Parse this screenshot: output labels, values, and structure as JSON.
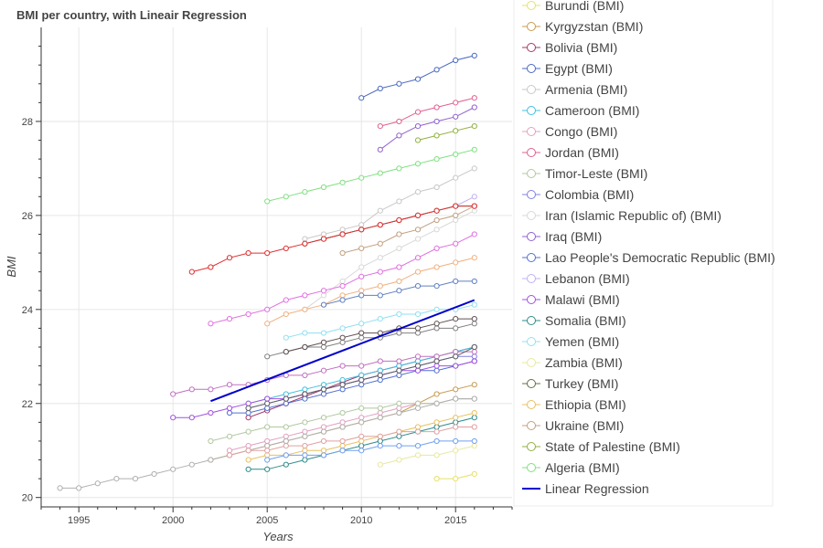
{
  "chart_data": {
    "type": "line",
    "title": "BMI per country, with Lineair Regression",
    "xlabel": "Years",
    "ylabel": "BMI",
    "xlim": [
      1993,
      2018
    ],
    "ylim": [
      19.8,
      30.0
    ],
    "xticks": [
      1995,
      2000,
      2005,
      2010,
      2015
    ],
    "yticks": [
      20,
      22,
      24,
      26,
      28
    ],
    "grid": true,
    "legend_position": "right",
    "series": [
      {
        "name": "Burundi (BMI)",
        "color": "#e8e066",
        "x": [
          2014,
          2015,
          2016
        ],
        "y": [
          20.4,
          20.4,
          20.5
        ]
      },
      {
        "name": "Kyrgyzstan (BMI)",
        "color": "#c89a50",
        "x": [
          2002,
          2003,
          2004,
          2005,
          2006,
          2007,
          2008,
          2009,
          2010,
          2011,
          2012,
          2013,
          2014,
          2015,
          2016
        ],
        "y": [
          20.8,
          20.9,
          21.0,
          21.1,
          21.2,
          21.3,
          21.4,
          21.5,
          21.6,
          21.7,
          21.8,
          22.0,
          22.2,
          22.3,
          22.4
        ]
      },
      {
        "name": "Bolivia (BMI)",
        "color": "#a03868",
        "x": [
          2004,
          2005,
          2006,
          2007,
          2008,
          2009,
          2010,
          2011,
          2012,
          2013,
          2014,
          2015,
          2016
        ],
        "y": [
          21.7,
          21.85,
          22.0,
          22.15,
          22.3,
          22.45,
          22.6,
          22.7,
          22.8,
          22.9,
          23.0,
          23.1,
          23.2
        ]
      },
      {
        "name": "Egypt (BMI)",
        "color": "#4a68c0",
        "x": [
          2010,
          2011,
          2012,
          2013,
          2014,
          2015,
          2016
        ],
        "y": [
          28.5,
          28.7,
          28.8,
          28.9,
          29.1,
          29.3,
          29.4
        ]
      },
      {
        "name": "Armenia (BMI)",
        "color": "#c8c8c8",
        "x": [
          2007,
          2008,
          2009,
          2010,
          2011,
          2012,
          2013,
          2014,
          2015,
          2016
        ],
        "y": [
          25.5,
          25.6,
          25.7,
          25.8,
          26.1,
          26.3,
          26.5,
          26.6,
          26.8,
          27.0
        ]
      },
      {
        "name": "Cameroon (BMI)",
        "color": "#40c0e0",
        "x": [
          2004,
          2005,
          2006,
          2007,
          2008,
          2009,
          2010,
          2011,
          2012,
          2013,
          2014,
          2015,
          2016
        ],
        "y": [
          22.0,
          22.1,
          22.2,
          22.3,
          22.4,
          22.5,
          22.6,
          22.7,
          22.8,
          22.9,
          23.0,
          23.1,
          23.2
        ]
      },
      {
        "name": "Congo (BMI)",
        "color": "#e0a0c0",
        "x": [
          2003,
          2004,
          2005,
          2006,
          2007,
          2008,
          2009,
          2010,
          2011,
          2012,
          2013,
          2014,
          2015,
          2016
        ],
        "y": [
          21.0,
          21.1,
          21.2,
          21.3,
          21.4,
          21.5,
          21.6,
          21.7,
          21.8,
          21.9,
          22.0,
          22.0,
          22.1,
          22.1
        ]
      },
      {
        "name": "Jordan (BMI)",
        "color": "#e06090",
        "x": [
          2011,
          2012,
          2013,
          2014,
          2015,
          2016
        ],
        "y": [
          27.9,
          28.0,
          28.2,
          28.3,
          28.4,
          28.5
        ]
      },
      {
        "name": "Timor-Leste (BMI)",
        "color": "#b0c8a0",
        "x": [
          2002,
          2003,
          2004,
          2005,
          2006,
          2007,
          2008,
          2009,
          2010,
          2011,
          2012,
          2013,
          2014,
          2015,
          2016
        ],
        "y": [
          21.2,
          21.3,
          21.4,
          21.5,
          21.5,
          21.6,
          21.7,
          21.8,
          21.9,
          21.9,
          22.0,
          22.0,
          22.0,
          22.1,
          22.1
        ]
      },
      {
        "name": "Colombia (BMI)",
        "color": "#8080e0",
        "x": [
          2004,
          2005,
          2006,
          2007,
          2008,
          2009,
          2010,
          2011,
          2012,
          2013,
          2014,
          2015,
          2016
        ],
        "y": [
          21.9,
          22.0,
          22.1,
          22.2,
          22.3,
          22.4,
          22.5,
          22.6,
          22.7,
          22.8,
          22.9,
          23.0,
          23.0
        ]
      },
      {
        "name": "Iran  (Islamic Republic of) (BMI)",
        "color": "#d8d8d8",
        "x": [
          2007,
          2008,
          2009,
          2010,
          2011,
          2012,
          2013,
          2014,
          2015,
          2016
        ],
        "y": [
          24.0,
          24.3,
          24.6,
          24.9,
          25.1,
          25.3,
          25.5,
          25.7,
          25.9,
          26.1
        ]
      },
      {
        "name": "Iraq (BMI)",
        "color": "#9060d0",
        "x": [
          2011,
          2012,
          2013,
          2014,
          2015,
          2016
        ],
        "y": [
          27.4,
          27.7,
          27.9,
          28.0,
          28.1,
          28.3
        ]
      },
      {
        "name": "Lao People's Democratic Republic (BMI)",
        "color": "#5070d0",
        "x": [
          2003,
          2004,
          2005,
          2006,
          2007,
          2008,
          2009,
          2010,
          2011,
          2012,
          2013,
          2014,
          2015,
          2016
        ],
        "y": [
          21.8,
          21.8,
          21.9,
          22.0,
          22.1,
          22.2,
          22.3,
          22.4,
          22.5,
          22.6,
          22.7,
          22.7,
          22.8,
          22.9
        ]
      },
      {
        "name": "Lebanon (BMI)",
        "color": "#c0b0f0",
        "x": [
          2007,
          2008,
          2009,
          2010,
          2011,
          2012,
          2013,
          2014,
          2015,
          2016
        ],
        "y": [
          25.4,
          25.5,
          25.6,
          25.7,
          25.8,
          25.9,
          26.0,
          26.1,
          26.2,
          26.4
        ]
      },
      {
        "name": "Malawi (BMI)",
        "color": "#a050e0",
        "x": [
          2000,
          2001,
          2002,
          2003,
          2004,
          2005,
          2006,
          2007,
          2008,
          2009,
          2010,
          2011,
          2012,
          2013,
          2014,
          2015,
          2016
        ],
        "y": [
          21.7,
          21.7,
          21.8,
          21.9,
          22.0,
          22.1,
          22.1,
          22.2,
          22.3,
          22.4,
          22.5,
          22.6,
          22.7,
          22.7,
          22.8,
          22.8,
          22.9
        ]
      },
      {
        "name": "Somalia (BMI)",
        "color": "#2e8b8b",
        "x": [
          2004,
          2005,
          2006,
          2007,
          2008,
          2009,
          2010,
          2011,
          2012,
          2013,
          2014,
          2015,
          2016
        ],
        "y": [
          20.6,
          20.6,
          20.7,
          20.8,
          20.9,
          21.0,
          21.1,
          21.2,
          21.3,
          21.4,
          21.5,
          21.6,
          21.7
        ]
      },
      {
        "name": "Yemen (BMI)",
        "color": "#90e0f0",
        "x": [
          2006,
          2007,
          2008,
          2009,
          2010,
          2011,
          2012,
          2013,
          2014,
          2015,
          2016
        ],
        "y": [
          23.4,
          23.5,
          23.5,
          23.6,
          23.7,
          23.8,
          23.9,
          23.9,
          24.0,
          24.0,
          24.1
        ]
      },
      {
        "name": "Zambia (BMI)",
        "color": "#e8e8a0",
        "x": [
          2011,
          2012,
          2013,
          2014,
          2015,
          2016
        ],
        "y": [
          20.7,
          20.8,
          20.9,
          20.9,
          21.0,
          21.1
        ]
      },
      {
        "name": "Turkey (BMI)",
        "color": "#607040",
        "x": [
          2007,
          2008,
          2009,
          2010,
          2011,
          2012,
          2013,
          2014,
          2015,
          2016
        ],
        "y": [
          25.4,
          25.5,
          25.6,
          25.7,
          25.8,
          25.9,
          26.0,
          26.1,
          26.2,
          26.2
        ]
      },
      {
        "name": "Ethiopia (BMI)",
        "color": "#e8c060",
        "x": [
          2004,
          2005,
          2006,
          2007,
          2008,
          2009,
          2010,
          2011,
          2012,
          2013,
          2014,
          2015,
          2016
        ],
        "y": [
          20.8,
          20.9,
          20.9,
          21.0,
          21.0,
          21.1,
          21.2,
          21.3,
          21.4,
          21.5,
          21.6,
          21.7,
          21.8
        ]
      },
      {
        "name": "Ukraine (BMI)",
        "color": "#c0a080",
        "x": [
          2009,
          2010,
          2011,
          2012,
          2013,
          2014,
          2015,
          2016
        ],
        "y": [
          25.2,
          25.3,
          25.4,
          25.6,
          25.7,
          25.9,
          26.0,
          26.2
        ]
      },
      {
        "name": "State of Palestine (BMI)",
        "color": "#90b040",
        "x": [
          2013,
          2014,
          2015,
          2016
        ],
        "y": [
          27.6,
          27.7,
          27.8,
          27.9
        ]
      },
      {
        "name": "Algeria (BMI)",
        "color": "#80e080",
        "x": [
          2005,
          2006,
          2007,
          2008,
          2009,
          2010,
          2011,
          2012,
          2013,
          2014,
          2015,
          2016
        ],
        "y": [
          26.3,
          26.4,
          26.5,
          26.6,
          26.7,
          26.8,
          26.9,
          27.0,
          27.1,
          27.2,
          27.3,
          27.4
        ]
      },
      {
        "name": "",
        "color": "#e03030",
        "x": [
          2001,
          2002,
          2003,
          2004,
          2005,
          2006,
          2007,
          2008,
          2009,
          2010,
          2011,
          2012,
          2013,
          2014,
          2015,
          2016
        ],
        "y": [
          24.8,
          24.9,
          25.1,
          25.2,
          25.2,
          25.3,
          25.4,
          25.5,
          25.6,
          25.7,
          25.8,
          25.9,
          26.0,
          26.1,
          26.2,
          26.2
        ]
      },
      {
        "name": "",
        "color": "#e070e0",
        "x": [
          2002,
          2003,
          2004,
          2005,
          2006,
          2007,
          2008,
          2009,
          2010,
          2011,
          2012,
          2013,
          2014,
          2015,
          2016
        ],
        "y": [
          23.7,
          23.8,
          23.9,
          24.0,
          24.2,
          24.3,
          24.4,
          24.5,
          24.7,
          24.8,
          24.9,
          25.1,
          25.3,
          25.4,
          25.6
        ]
      },
      {
        "name": "",
        "color": "#f0b080",
        "x": [
          2005,
          2006,
          2007,
          2008,
          2009,
          2010,
          2011,
          2012,
          2013,
          2014,
          2015,
          2016
        ],
        "y": [
          23.7,
          23.9,
          24.0,
          24.1,
          24.3,
          24.4,
          24.5,
          24.6,
          24.8,
          24.9,
          25.0,
          25.1
        ]
      },
      {
        "name": "",
        "color": "#6080c0",
        "x": [
          2008,
          2009,
          2010,
          2011,
          2012,
          2013,
          2014,
          2015,
          2016
        ],
        "y": [
          24.1,
          24.2,
          24.3,
          24.3,
          24.4,
          24.5,
          24.5,
          24.6,
          24.6
        ]
      },
      {
        "name": "",
        "color": "#b0b0b0",
        "x": [
          1994,
          1995,
          1996,
          1997,
          1998,
          1999,
          2000,
          2001,
          2002,
          2003,
          2004,
          2005,
          2006,
          2007,
          2008,
          2009,
          2010,
          2011,
          2012,
          2013,
          2014,
          2015,
          2016
        ],
        "y": [
          20.2,
          20.2,
          20.3,
          20.4,
          20.4,
          20.5,
          20.6,
          20.7,
          20.8,
          20.9,
          21.0,
          21.1,
          21.2,
          21.3,
          21.4,
          21.5,
          21.6,
          21.7,
          21.8,
          21.9,
          22.0,
          22.1,
          22.1
        ]
      },
      {
        "name": "",
        "color": "#808080",
        "x": [
          2005,
          2006,
          2007,
          2008,
          2009,
          2010,
          2011,
          2012,
          2013,
          2014,
          2015,
          2016
        ],
        "y": [
          23.0,
          23.1,
          23.2,
          23.2,
          23.3,
          23.4,
          23.4,
          23.5,
          23.5,
          23.6,
          23.6,
          23.7
        ]
      },
      {
        "name": "",
        "color": "#605050",
        "x": [
          2006,
          2007,
          2008,
          2009,
          2010,
          2011,
          2012,
          2013,
          2014,
          2015,
          2016
        ],
        "y": [
          23.1,
          23.2,
          23.3,
          23.4,
          23.5,
          23.5,
          23.6,
          23.6,
          23.7,
          23.8,
          23.8
        ]
      },
      {
        "name": "",
        "color": "#c070c0",
        "x": [
          2000,
          2001,
          2002,
          2003,
          2004,
          2005,
          2006,
          2007,
          2008,
          2009,
          2010,
          2011,
          2012,
          2013,
          2014,
          2015,
          2016
        ],
        "y": [
          22.2,
          22.3,
          22.3,
          22.4,
          22.4,
          22.5,
          22.6,
          22.6,
          22.7,
          22.8,
          22.8,
          22.9,
          22.9,
          23.0,
          23.0,
          23.1,
          23.1
        ]
      },
      {
        "name": "",
        "color": "#606060",
        "x": [
          2004,
          2005,
          2006,
          2007,
          2008,
          2009,
          2010,
          2011,
          2012,
          2013,
          2014,
          2015,
          2016
        ],
        "y": [
          21.9,
          22.0,
          22.1,
          22.2,
          22.3,
          22.4,
          22.5,
          22.6,
          22.7,
          22.8,
          22.9,
          23.0,
          23.2
        ]
      },
      {
        "name": "",
        "color": "#70a0f0",
        "x": [
          2005,
          2006,
          2007,
          2008,
          2009,
          2010,
          2011,
          2012,
          2013,
          2014,
          2015,
          2016
        ],
        "y": [
          20.8,
          20.9,
          20.9,
          20.9,
          21.0,
          21.0,
          21.1,
          21.1,
          21.1,
          21.2,
          21.2,
          21.2
        ]
      },
      {
        "name": "",
        "color": "#e0a0a0",
        "x": [
          2003,
          2004,
          2005,
          2006,
          2007,
          2008,
          2009,
          2010,
          2011,
          2012,
          2013,
          2014,
          2015,
          2016
        ],
        "y": [
          20.9,
          21.0,
          21.0,
          21.1,
          21.1,
          21.2,
          21.2,
          21.3,
          21.3,
          21.4,
          21.4,
          21.4,
          21.5,
          21.5
        ]
      },
      {
        "name": "Linear Regression",
        "color": "#0000cc",
        "x": [
          2002,
          2016
        ],
        "y": [
          22.05,
          24.2
        ],
        "markers": false
      }
    ]
  }
}
